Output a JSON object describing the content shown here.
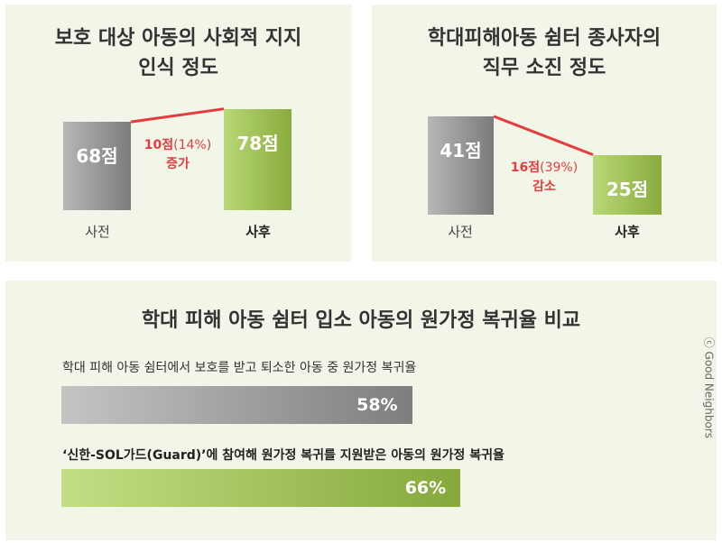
{
  "chart_data": [
    {
      "type": "bar",
      "title_lines": [
        "보호 대상 아동의 사회적 지지",
        "인식 정도"
      ],
      "categories": [
        "사전",
        "사후"
      ],
      "values": [
        68,
        78
      ],
      "value_labels": [
        "68점",
        "78점"
      ],
      "change": {
        "main": "10점",
        "pct": "(14%)",
        "word": "증가"
      },
      "colors": {
        "before": "#9a9a9a",
        "after": "#9fc054",
        "line": "#e53d3d"
      }
    },
    {
      "type": "bar",
      "title_lines": [
        "학대피해아동 쉼터 종사자의",
        "직무 소진 정도"
      ],
      "categories": [
        "사전",
        "사후"
      ],
      "values": [
        41,
        25
      ],
      "value_labels": [
        "41점",
        "25점"
      ],
      "change": {
        "main": "16점",
        "pct": "(39%)",
        "word": "감소"
      },
      "colors": {
        "before": "#9a9a9a",
        "after": "#9fc054",
        "line": "#e53d3d"
      }
    },
    {
      "type": "bar",
      "orientation": "horizontal",
      "title": "학대 피해 아동 쉼터 입소 아동의 원가정 복귀율 비교",
      "categories": [
        "학대 피해 아동 쉼터에서 보호를 받고 퇴소한 아동 중 원가정 복귀율",
        "‘신한-SOL가드(Guard)’에 참여해 원가정 복귀를 지원받은 아동의 원가정 복귀율"
      ],
      "values": [
        58,
        66
      ],
      "value_labels": [
        "58%",
        "66%"
      ],
      "colors": [
        "#9a9a9a",
        "#9fc054"
      ]
    }
  ],
  "credit": "ⓒ Good Neighbors"
}
